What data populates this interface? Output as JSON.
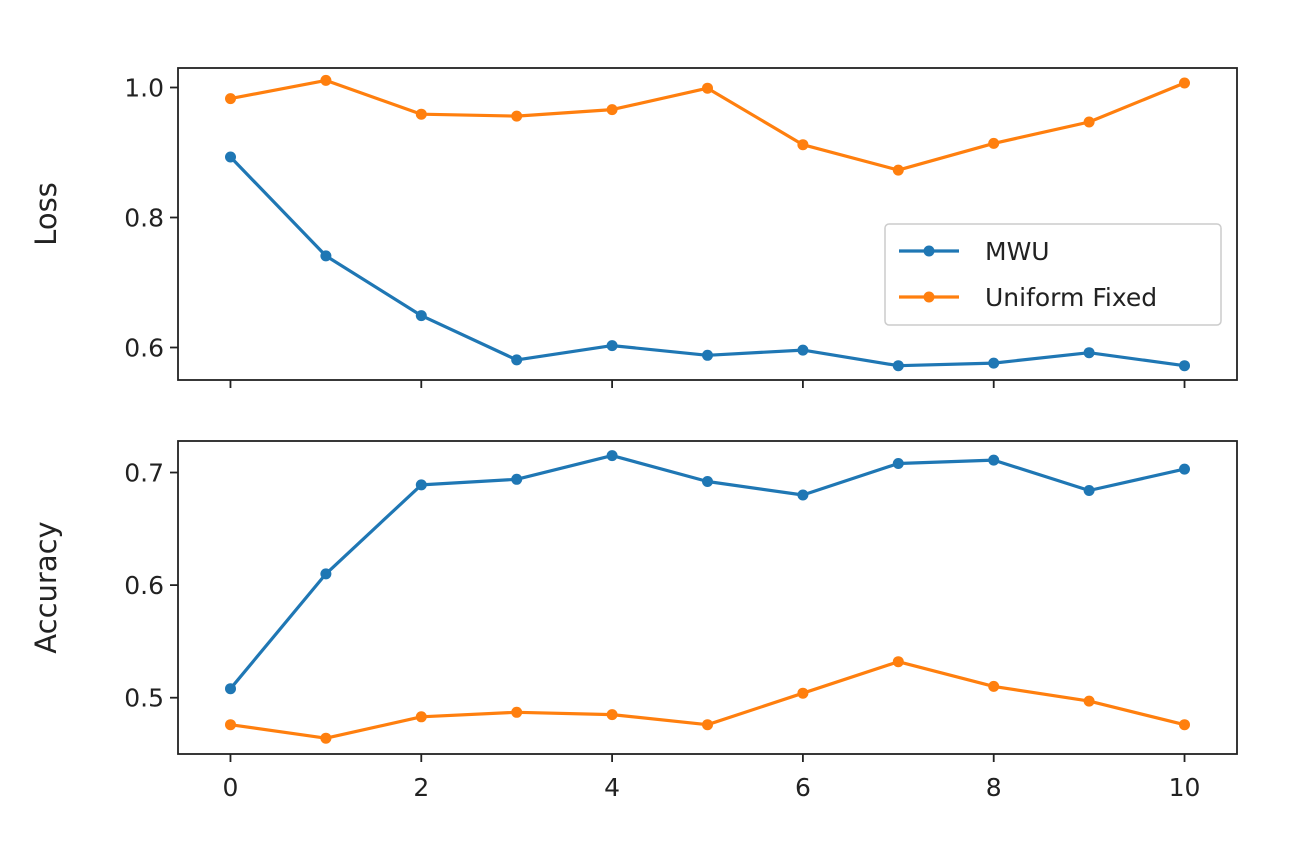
{
  "chart_data": [
    {
      "type": "line",
      "ylabel": "Loss",
      "xlabel": "",
      "x": [
        0,
        1,
        2,
        3,
        4,
        5,
        6,
        7,
        8,
        9,
        10
      ],
      "xlim": [
        -0.55,
        10.55
      ],
      "ylim": [
        0.55,
        1.03
      ],
      "yticks": [
        0.6,
        0.8,
        1.0
      ],
      "ytick_labels": [
        "0.6",
        "0.8",
        "1.0"
      ],
      "xticks": [
        0,
        2,
        4,
        6,
        8,
        10
      ],
      "show_xtick_labels": false,
      "grid": false,
      "legend": {
        "placement": "center-right",
        "entries": [
          "MWU",
          "Uniform Fixed"
        ]
      },
      "series": [
        {
          "name": "MWU",
          "color": "#1f77b4",
          "values": [
            0.893,
            0.741,
            0.649,
            0.581,
            0.603,
            0.588,
            0.596,
            0.572,
            0.576,
            0.592,
            0.572
          ]
        },
        {
          "name": "Uniform Fixed",
          "color": "#ff7f0e",
          "values": [
            0.983,
            1.011,
            0.959,
            0.956,
            0.966,
            0.999,
            0.912,
            0.873,
            0.914,
            0.947,
            1.007
          ]
        }
      ]
    },
    {
      "type": "line",
      "ylabel": "Accuracy",
      "xlabel": "",
      "x": [
        0,
        1,
        2,
        3,
        4,
        5,
        6,
        7,
        8,
        9,
        10
      ],
      "xlim": [
        -0.55,
        10.55
      ],
      "ylim": [
        0.45,
        0.728
      ],
      "yticks": [
        0.5,
        0.6,
        0.7
      ],
      "ytick_labels": [
        "0.5",
        "0.6",
        "0.7"
      ],
      "xticks": [
        0,
        2,
        4,
        6,
        8,
        10
      ],
      "xtick_labels": [
        "0",
        "2",
        "4",
        "6",
        "8",
        "10"
      ],
      "show_xtick_labels": true,
      "grid": false,
      "series": [
        {
          "name": "MWU",
          "color": "#1f77b4",
          "values": [
            0.508,
            0.61,
            0.689,
            0.694,
            0.715,
            0.692,
            0.68,
            0.708,
            0.711,
            0.684,
            0.703
          ]
        },
        {
          "name": "Uniform Fixed",
          "color": "#ff7f0e",
          "values": [
            0.476,
            0.464,
            0.483,
            0.487,
            0.485,
            0.476,
            0.504,
            0.532,
            0.51,
            0.497,
            0.476
          ]
        }
      ]
    }
  ]
}
